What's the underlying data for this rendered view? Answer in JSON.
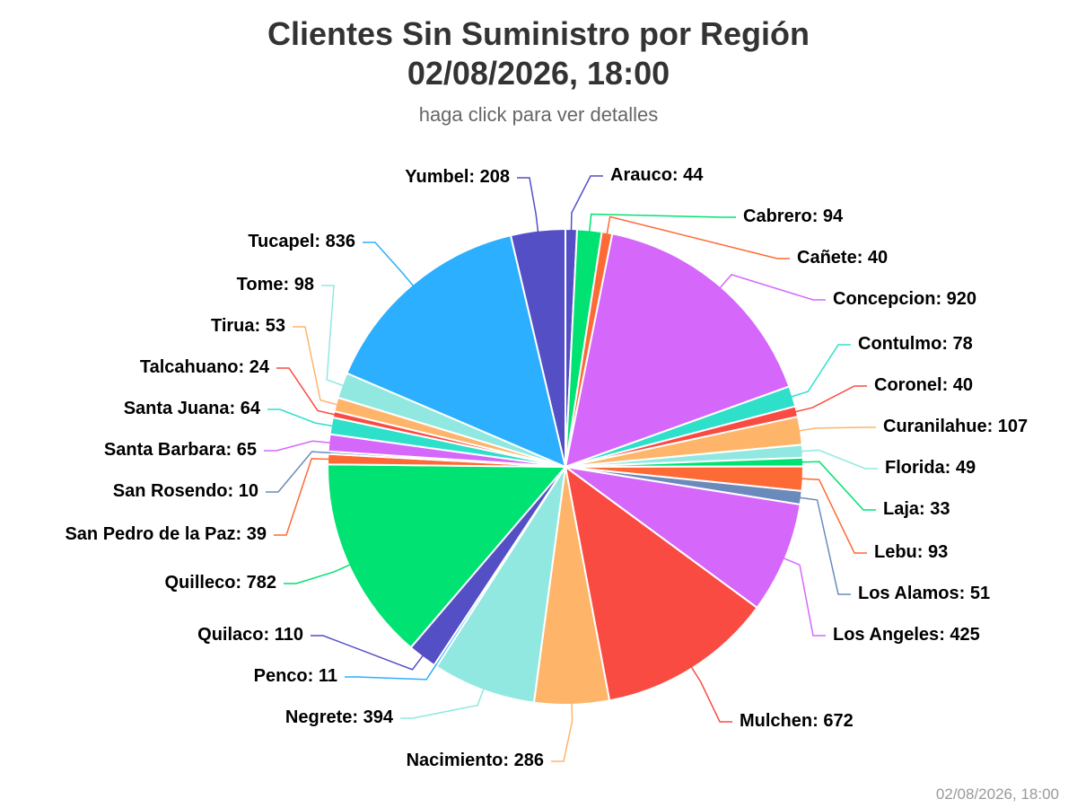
{
  "chart_data": {
    "type": "pie",
    "title": [
      "Clientes Sin Suministro por Región",
      "02/08/2026, 18:00"
    ],
    "subtitle": "haga click para ver detalles",
    "credits": "02/08/2026, 18:00",
    "categories": [
      "Arauco",
      "Cabrero",
      "Cañete",
      "Concepcion",
      "Contulmo",
      "Coronel",
      "Curanilahue",
      "Florida",
      "Laja",
      "Lebu",
      "Los Alamos",
      "Los Angeles",
      "Mulchen",
      "Nacimiento",
      "Negrete",
      "Penco",
      "Quilaco",
      "Quilleco",
      "San Pedro de la Paz",
      "San Rosendo",
      "Santa Barbara",
      "Santa Juana",
      "Talcahuano",
      "Tirua",
      "Tome",
      "Tucapel",
      "Yumbel"
    ],
    "values": [
      44,
      94,
      40,
      920,
      78,
      40,
      107,
      49,
      33,
      93,
      51,
      425,
      672,
      286,
      394,
      11,
      110,
      782,
      39,
      10,
      65,
      64,
      24,
      53,
      98,
      836,
      208
    ],
    "value_labels": [
      ": 44",
      ": 94",
      ": 40",
      ": 920",
      ": 78",
      ": 40",
      ": 107",
      ": 49",
      ": 33",
      ": 93",
      ": 51",
      ": 425",
      ": 672",
      ": 286",
      ": 394",
      ": 11",
      ": 110",
      ": 782",
      ": 39",
      ": 10",
      ": 65",
      ": 64",
      ": 24",
      ": 53",
      ": 98",
      ": 836",
      ": 208"
    ],
    "colors": [
      "#544fc5",
      "#00e272",
      "#fe6a35",
      "#d568fb",
      "#2ee0ca",
      "#fa4b42",
      "#feb56a",
      "#91e8e1",
      "#00e272",
      "#fe6a35",
      "#6b8abc",
      "#d568fb",
      "#fa4b42",
      "#feb56a",
      "#91e8e1",
      "#2caffe",
      "#544fc5",
      "#00e272",
      "#fe6a35",
      "#6b8abc",
      "#d568fb",
      "#2ee0ca",
      "#fa4b42",
      "#feb56a",
      "#91e8e1",
      "#2caffe",
      "#544fc5"
    ]
  }
}
